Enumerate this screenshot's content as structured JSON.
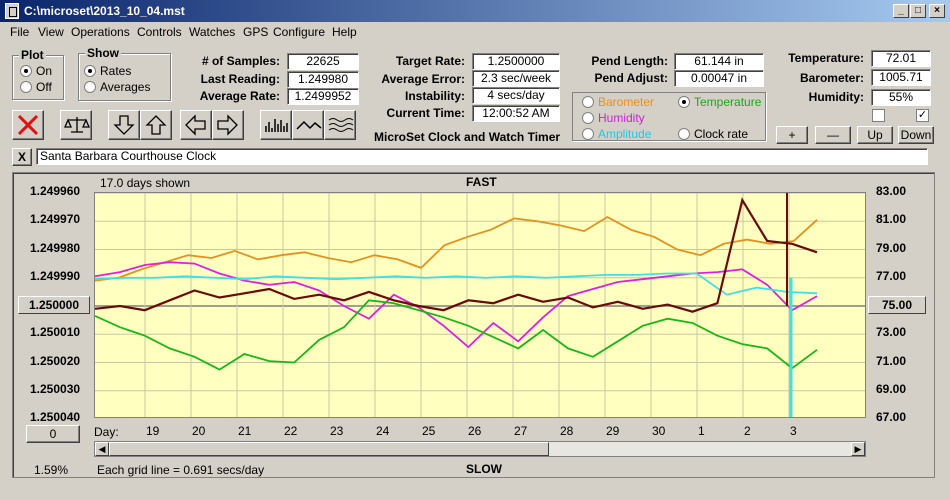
{
  "title": "C:\\microset\\2013_10_04.mst",
  "window_buttons": {
    "minimize": "_",
    "maximize": "□",
    "close": "×"
  },
  "menu": [
    "File",
    "View",
    "Operations",
    "Controls",
    "Watches",
    "GPS",
    "Configure",
    "Help"
  ],
  "plot_group": {
    "title": "Plot",
    "on": "On",
    "off": "Off",
    "selected": "on"
  },
  "show_group": {
    "title": "Show",
    "rates": "Rates",
    "averages": "Averages",
    "selected": "rates"
  },
  "stats": {
    "samples_label": "# of Samples:",
    "samples": "22625",
    "last_label": "Last Reading:",
    "last": "1.249980",
    "avg_label": "Average Rate:",
    "avg": "1.2499952"
  },
  "target": {
    "target_label": "Target Rate:",
    "target": "1.2500000",
    "error_label": "Average Error:",
    "error": "2.3 sec/week",
    "instab_label": "Instability:",
    "instab": "4 secs/day",
    "time_label": "Current Time:",
    "time": "12:00:52 AM"
  },
  "pend": {
    "length_label": "Pend Length:",
    "length": "61.144 in",
    "adjust_label": "Pend Adjust:",
    "adjust": "0.00047 in"
  },
  "sensor_select": {
    "barometer": "Barometer",
    "temperature": "Temperature",
    "humidity": "Humidity",
    "amplitude": "Amplitude",
    "clock_rate": "Clock rate",
    "selected": "temperature"
  },
  "env": {
    "temp_label": "Temperature:",
    "temp": "72.01",
    "baro_label": "Barometer:",
    "baro": "1005.71",
    "hum_label": "Humidity:",
    "hum": "55%"
  },
  "app_caption": "MicroSet Clock and Watch Timer",
  "scale_buttons": {
    "plus": "+",
    "minus": "—",
    "up": "Up",
    "down": "Down"
  },
  "checkboxes": [
    false,
    true
  ],
  "clock_name": "Santa Barbara Courthouse Clock",
  "clear_button": "X",
  "colors": {
    "orange": "#e8901c",
    "magenta": "#e020e0",
    "cyan": "#40e0e8",
    "maroon": "#6a0a0a",
    "green": "#18b818",
    "plot_bg": "#ffffc0"
  },
  "chart_data": {
    "type": "line",
    "top_label": "FAST",
    "bottom_label": "SLOW",
    "days_shown": "17.0 days shown",
    "grid_note": "Each grid line = 0.691 secs/day",
    "percent": "1.59%",
    "left_reset_button": "0",
    "x_prefix": "Day:",
    "x_ticks": [
      "19",
      "20",
      "21",
      "22",
      "23",
      "24",
      "25",
      "26",
      "27",
      "28",
      "29",
      "30",
      "1",
      "2",
      "3"
    ],
    "y_left_ticks": [
      "1.249960",
      "1.249970",
      "1.249980",
      "1.249990",
      "1.250000",
      "1.250010",
      "1.250020",
      "1.250030",
      "1.250040"
    ],
    "y_left_selected": "1.250000",
    "y_right_ticks": [
      "83.00",
      "81.00",
      "79.00",
      "77.00",
      "75.00",
      "73.00",
      "71.00",
      "69.00",
      "67.00"
    ],
    "y_right_selected": "75.00",
    "y_left_range": [
      1.24996,
      1.25004
    ],
    "y_right_range": [
      67,
      83
    ],
    "series": [
      {
        "color": "#e8901c",
        "axis": "right",
        "values": [
          76.8,
          77.0,
          77.6,
          78.1,
          78.6,
          78.4,
          78.9,
          78.3,
          78.6,
          78.8,
          78.4,
          78.1,
          78.6,
          78.3,
          77.7,
          79.3,
          79.9,
          80.4,
          81.2,
          81.0,
          80.7,
          80.3,
          81.3,
          80.4,
          79.9,
          79.0,
          78.6,
          79.4,
          79.7,
          79.4,
          79.6,
          81.1
        ]
      },
      {
        "color": "#e020e0",
        "axis": "right",
        "values": [
          77.1,
          77.4,
          77.9,
          78.1,
          78.0,
          77.3,
          76.8,
          76.5,
          76.7,
          76.1,
          75.0,
          74.1,
          75.8,
          74.9,
          73.6,
          72.1,
          73.8,
          72.5,
          74.2,
          75.7,
          76.2,
          76.7,
          76.9,
          77.1,
          77.3,
          77.4,
          77.6,
          76.5,
          74.7,
          75.7
        ]
      },
      {
        "color": "#40e0e8",
        "axis": "right",
        "values": [
          76.9,
          77.0,
          77.0,
          77.1,
          77.0,
          76.9,
          77.1,
          77.0,
          76.9,
          77.0,
          77.1,
          77.0,
          77.1,
          77.0,
          77.1,
          77.0,
          77.1,
          77.2,
          77.2,
          77.3,
          77.3,
          75.8,
          76.3,
          76.0,
          75.9
        ]
      },
      {
        "color": "#6a0a0a",
        "axis": "right",
        "values": [
          74.8,
          75.0,
          74.7,
          75.4,
          76.1,
          75.6,
          75.9,
          76.2,
          75.5,
          75.8,
          75.4,
          76.0,
          75.4,
          75.0,
          74.7,
          75.4,
          75.2,
          75.8,
          75.3,
          75.6,
          74.9,
          75.3,
          74.8,
          75.1,
          74.6,
          75.2,
          82.5,
          79.6,
          79.4,
          78.8
        ]
      },
      {
        "color": "#18b818",
        "axis": "right",
        "values": [
          74.3,
          73.5,
          72.9,
          72.0,
          71.4,
          70.5,
          71.6,
          71.1,
          71.0,
          72.6,
          73.5,
          75.4,
          75.2,
          74.7,
          74.2,
          73.6,
          72.8,
          72.0,
          73.3,
          72.0,
          71.4,
          72.5,
          73.6,
          74.1,
          73.8,
          72.9,
          72.3,
          72.0,
          70.6,
          71.9
        ]
      }
    ]
  }
}
